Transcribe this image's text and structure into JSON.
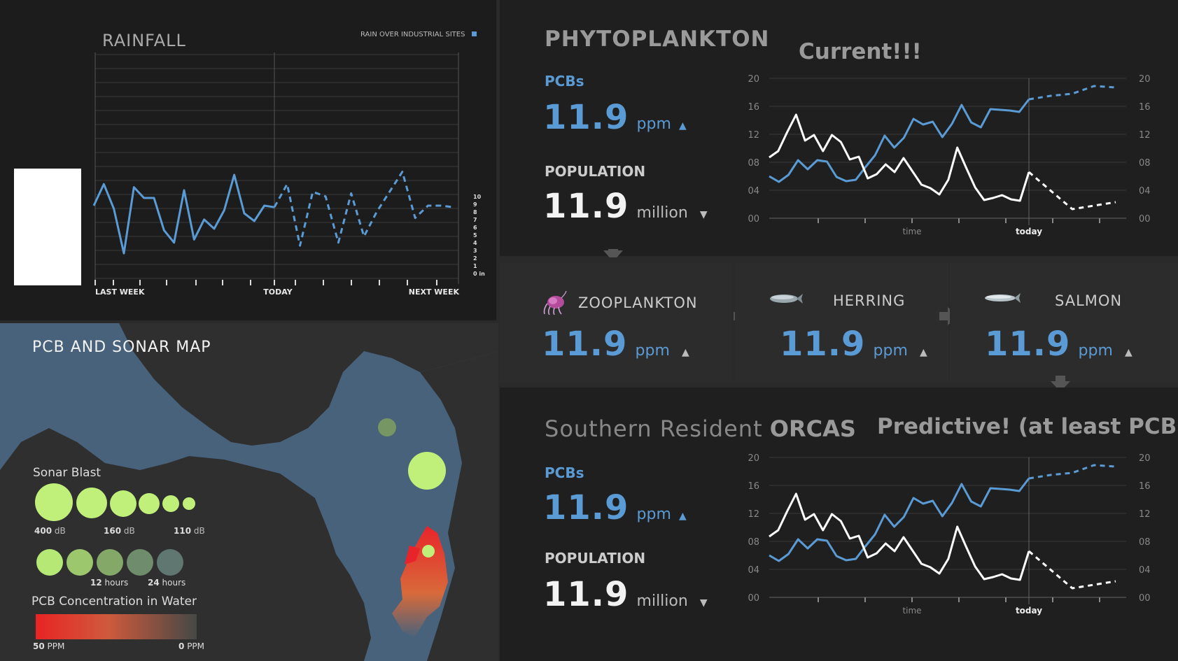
{
  "rainfall": {
    "title": "RAINFALL",
    "legend": "RAIN OVER INDUSTRIAL SITES",
    "x_labels": [
      "LAST WEEK",
      "TODAY",
      "NEXT WEEK"
    ],
    "y_ticks": [
      "10",
      "9",
      "8",
      "7",
      "6",
      "5",
      "4",
      "3",
      "2",
      "1",
      "0 in"
    ],
    "colors": {
      "line": "#5b9bd5",
      "bg": "#1d1d1d"
    }
  },
  "map": {
    "title": "PCB AND SONAR MAP",
    "sonar_title": "Sonar Blast",
    "sonar_labels": [
      "400",
      "160",
      "110"
    ],
    "sonar_unit": "dB",
    "hours_labels": [
      "12",
      "24"
    ],
    "hours_unit": "hours",
    "pcb_title": "PCB Concentration in Water",
    "pcb_min": "50",
    "pcb_max": "0",
    "pcb_unit": "PPM",
    "colors": {
      "water": "#48627c",
      "land": "#2f2f2f",
      "bubble": "#c0f07a",
      "pcb_high": "#e82828"
    }
  },
  "phyto": {
    "title": "PHYTOPLANKTON",
    "note": "Current!!!",
    "pcb_label": "PCBs",
    "pcb_value": "11.9",
    "pcb_unit": "ppm",
    "pcb_trend": "▲",
    "pop_label": "POPULATION",
    "pop_value": "11.9",
    "pop_unit": "million",
    "pop_trend": "▼",
    "chart_x_label": "time",
    "chart_today_label": "today"
  },
  "food_chain": [
    {
      "name": "ZOOPLANKTON",
      "icon": "zooplankton-icon",
      "value": "11.9",
      "unit": "ppm",
      "trend": "▲"
    },
    {
      "name": "HERRING",
      "icon": "herring-icon",
      "value": "11.9",
      "unit": "ppm",
      "trend": "▲"
    },
    {
      "name": "SALMON",
      "icon": "salmon-icon",
      "value": "11.9",
      "unit": "ppm",
      "trend": "▲"
    }
  ],
  "orcas": {
    "title_light": "Southern Resident",
    "title_bold": "ORCAS",
    "note": "Predictive! (at least PCBs)",
    "pcb_label": "PCBs",
    "pcb_value": "11.9",
    "pcb_unit": "ppm",
    "pcb_trend": "▲",
    "pop_label": "POPULATION",
    "pop_value": "11.9",
    "pop_unit": "million",
    "pop_trend": "▼",
    "chart_x_label": "time",
    "chart_today_label": "today"
  },
  "chart_data": [
    {
      "type": "line",
      "title": "RAINFALL",
      "xlabel": "",
      "ylabel": "",
      "x_tick_labels": [
        "LAST WEEK",
        "TODAY",
        "NEXT WEEK"
      ],
      "ylim": [
        0,
        10
      ],
      "y_unit": "in",
      "grid": true,
      "legend": "top-right",
      "series": [
        {
          "name": "RAIN OVER INDUSTRIAL SITES",
          "style": "solid",
          "values": [
            8.0,
            9.4,
            7.8,
            4.9,
            9.2,
            8.5,
            8.5,
            6.4,
            5.6,
            9.0,
            5.8,
            7.1,
            6.5,
            7.7,
            10.0,
            7.5,
            7.0,
            8.0,
            7.9
          ]
        },
        {
          "name": "RAIN OVER INDUSTRIAL SITES (forecast)",
          "style": "dashed",
          "values": [
            7.9,
            9.4,
            5.4,
            8.9,
            8.6,
            5.6,
            8.8,
            6.0,
            7.6,
            8.9,
            10.2,
            7.2,
            8.0,
            8.0,
            7.9
          ]
        }
      ]
    },
    {
      "type": "line",
      "title": "",
      "xlabel": "time",
      "ylabel": "",
      "ylim": [
        0,
        20
      ],
      "y_ticks": [
        "00",
        "04",
        "08",
        "12",
        "16",
        "20"
      ],
      "marker": "today",
      "series": [
        {
          "name": "PCBs",
          "color": "#5b9bd5",
          "style": "solid",
          "values": [
            6,
            5.2,
            6.2,
            8.3,
            7,
            8.3,
            8.1,
            5.9,
            5.3,
            5.5,
            7.3,
            9,
            11.8,
            10.1,
            11.5,
            14.2,
            13.4,
            13.8,
            11.6,
            13.5,
            16.2,
            13.7,
            13,
            15.6,
            15.5,
            15.4,
            15.2,
            17
          ]
        },
        {
          "name": "PCBs (forecast)",
          "color": "#5b9bd5",
          "style": "dashed",
          "values": [
            17,
            17.5,
            17.8,
            18.9,
            18.7
          ]
        },
        {
          "name": "POPULATION",
          "color": "#ffffff",
          "style": "solid",
          "values": [
            8.7,
            9.6,
            12.3,
            14.8,
            11.1,
            11.9,
            9.6,
            11.9,
            10.9,
            8.4,
            8.8,
            5.7,
            6.3,
            7.7,
            6.6,
            8.6,
            6.7,
            4.8,
            4.3,
            3.4,
            5.5,
            10.1,
            7.2,
            4.4,
            2.6,
            2.9,
            3.3,
            2.7,
            2.5,
            6.6
          ]
        },
        {
          "name": "POPULATION (forecast)",
          "color": "#ffffff",
          "style": "dashed",
          "values": [
            6.6,
            1.3,
            2.3
          ]
        }
      ]
    },
    {
      "type": "line",
      "title": "",
      "xlabel": "time",
      "ylabel": "",
      "ylim": [
        0,
        20
      ],
      "y_ticks": [
        "00",
        "04",
        "08",
        "12",
        "16",
        "20"
      ],
      "marker": "today",
      "series": [
        {
          "name": "PCBs",
          "color": "#5b9bd5",
          "style": "solid",
          "values": [
            6,
            5.2,
            6.2,
            8.3,
            7,
            8.3,
            8.1,
            5.9,
            5.3,
            5.5,
            7.3,
            9,
            11.8,
            10.1,
            11.5,
            14.2,
            13.4,
            13.8,
            11.6,
            13.5,
            16.2,
            13.7,
            13,
            15.6,
            15.5,
            15.4,
            15.2,
            17
          ]
        },
        {
          "name": "PCBs (forecast)",
          "color": "#5b9bd5",
          "style": "dashed",
          "values": [
            17,
            17.5,
            17.8,
            18.9,
            18.7
          ]
        },
        {
          "name": "POPULATION",
          "color": "#ffffff",
          "style": "solid",
          "values": [
            8.7,
            9.6,
            12.3,
            14.8,
            11.1,
            11.9,
            9.6,
            11.9,
            10.9,
            8.4,
            8.8,
            5.7,
            6.3,
            7.7,
            6.6,
            8.6,
            6.7,
            4.8,
            4.3,
            3.4,
            5.5,
            10.1,
            7.2,
            4.4,
            2.6,
            2.9,
            3.3,
            2.7,
            2.5,
            6.6
          ]
        },
        {
          "name": "POPULATION (forecast)",
          "color": "#ffffff",
          "style": "dashed",
          "values": [
            6.6,
            1.3,
            2.3
          ]
        }
      ]
    }
  ]
}
